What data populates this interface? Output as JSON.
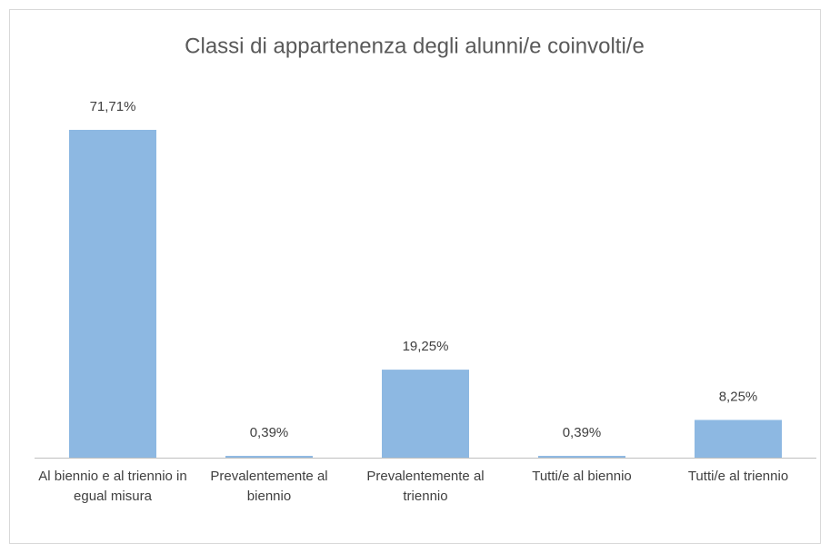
{
  "chart_data": {
    "type": "bar",
    "title": "Classi di appartenenza degli alunni/e coinvolti/e",
    "categories": [
      "Al biennio e al triennio in egual misura",
      "Prevalentemente al biennio",
      "Prevalentemente al triennio",
      "Tutti/e al biennio",
      "Tutti/e al triennio"
    ],
    "values": [
      71.71,
      0.39,
      19.25,
      0.39,
      8.25
    ],
    "value_labels": [
      "71,71%",
      "0,39%",
      "19,25%",
      "0,39%",
      "8,25%"
    ],
    "color": "#8db8e2"
  }
}
